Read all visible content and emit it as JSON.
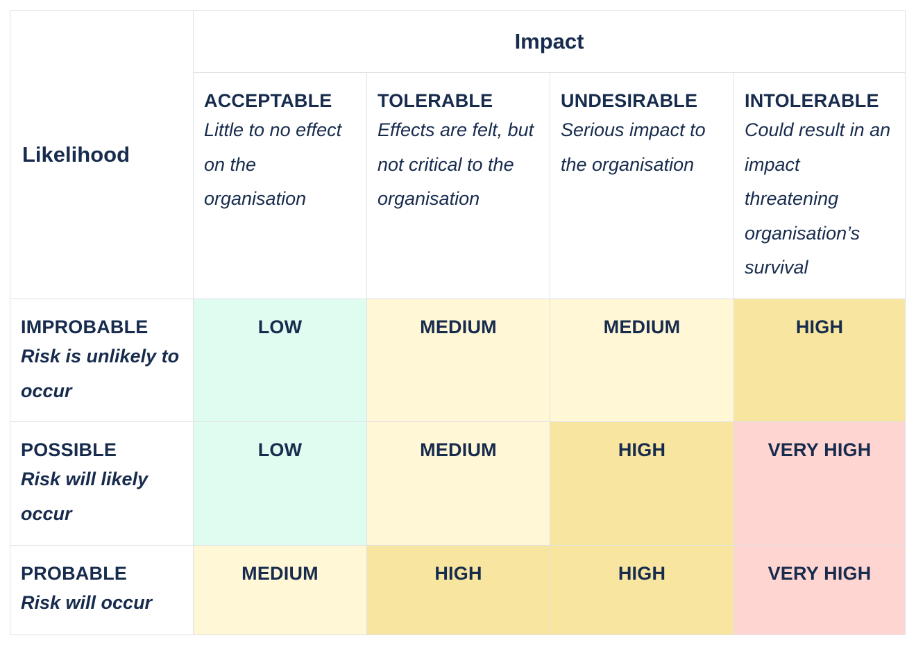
{
  "table": {
    "likelihood_label": "Likelihood",
    "impact_label": "Impact",
    "impact_levels": [
      {
        "name": "ACCEPTABLE",
        "description": "Little to no effect on the organisation"
      },
      {
        "name": "TOLERABLE",
        "description": "Effects are felt, but not critical to the organisation"
      },
      {
        "name": "UNDESIRABLE",
        "description": "Serious impact to the organisation"
      },
      {
        "name": "INTOLERABLE",
        "description": "Could result in an impact threatening organisation’s survival"
      }
    ],
    "rows": [
      {
        "name": "IMPROBABLE",
        "description": "Risk is unlikely to occur",
        "ratings": [
          "LOW",
          "MEDIUM",
          "MEDIUM",
          "HIGH"
        ]
      },
      {
        "name": "POSSIBLE",
        "description": "Risk will likely occur",
        "ratings": [
          "LOW",
          "MEDIUM",
          "HIGH",
          "VERY HIGH"
        ]
      },
      {
        "name": "PROBABLE",
        "description": "Risk will occur",
        "ratings": [
          "MEDIUM",
          "HIGH",
          "HIGH",
          "VERY HIGH"
        ]
      }
    ]
  },
  "colors": {
    "text": "#172b4d",
    "border": "#dfe1e6",
    "low": "#dffcf0",
    "medium": "#fff7d6",
    "high": "#f8e6a0",
    "very_high": "#ffd5d2"
  }
}
